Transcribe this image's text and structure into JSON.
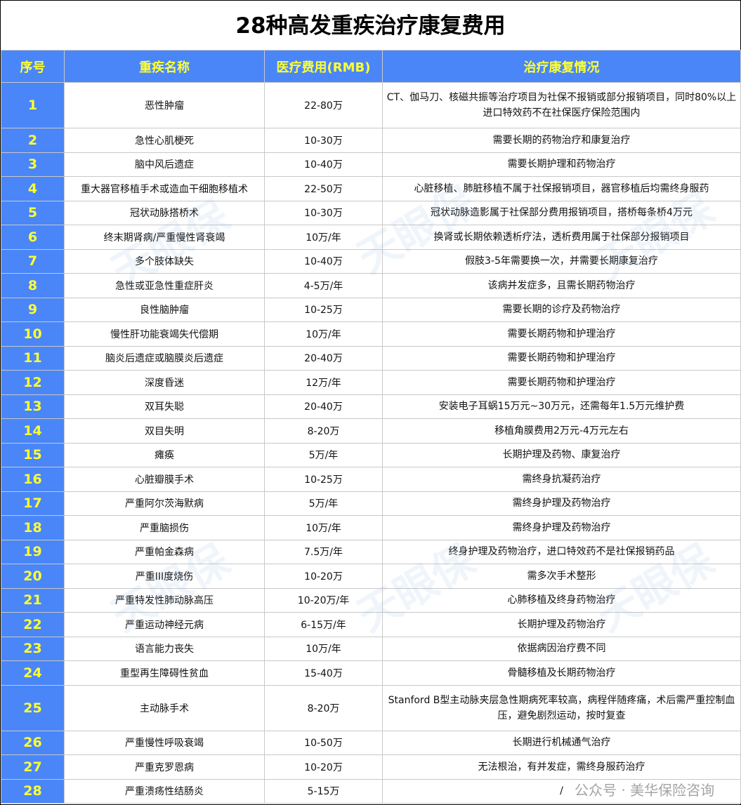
{
  "title": "28种高发重疾治疗康复费用",
  "headers": [
    "序号",
    "重疾名称",
    "医疗费用(RMB)",
    "治疗康复情况"
  ],
  "rows": [
    [
      "1",
      "恶性肿瘤",
      "22-80万",
      "CT、伽马刀、核磁共振等治疗项目为社保不报销或部分报销项目，同时80%以上进口特效药不在社保医疗保险范围内"
    ],
    [
      "2",
      "急性心肌梗死",
      "10-30万",
      "需要长期的药物治疗和康复治疗"
    ],
    [
      "3",
      "脑中风后遗症",
      "10-40万",
      "需要长期护理和药物治疗"
    ],
    [
      "4",
      "重大器官移植手术或造血干细胞移植术",
      "22-50万",
      "心脏移植、肺脏移植不属于社保报销项目，器官移植后均需终身服药"
    ],
    [
      "5",
      "冠状动脉搭桥术",
      "10-30万",
      "冠状动脉造影属于社保部分费用报销项目，搭桥每条桥4万元"
    ],
    [
      "6",
      "终末期肾病/严重慢性肾衰竭",
      "10万/年",
      "换肾或长期依赖透析疗法，透析费用属于社保部分报销项目"
    ],
    [
      "7",
      "多个肢体缺失",
      "10-40万",
      "假肢3-5年需要换一次，并需要长期康复治疗"
    ],
    [
      "8",
      "急性或亚急性重症肝炎",
      "4-5万/年",
      "该病并发症多，且需长期药物治疗"
    ],
    [
      "9",
      "良性脑肿瘤",
      "10-25万",
      "需要长期的诊疗及药物治疗"
    ],
    [
      "10",
      "慢性肝功能衰竭失代偿期",
      "10万/年",
      "需要长期药物和护理治疗"
    ],
    [
      "11",
      "脑炎后遗症或脑膜炎后遗症",
      "20-40万",
      "需要长期药物和护理治疗"
    ],
    [
      "12",
      "深度昏迷",
      "12万/年",
      "需要长期药物和护理治疗"
    ],
    [
      "13",
      "双耳失聪",
      "20-40万",
      "安装电子耳蜗15万元~30万元，还需每年1.5万元维护费"
    ],
    [
      "14",
      "双目失明",
      "8-20万",
      "移植角膜费用2万元-4万元左右"
    ],
    [
      "15",
      "瘫痪",
      "5万/年",
      "长期护理及药物、康复治疗"
    ],
    [
      "16",
      "心脏瓣膜手术",
      "10-25万",
      "需终身抗凝药治疗"
    ],
    [
      "17",
      "严重阿尔茨海默病",
      "5万/年",
      "需终身护理及药物治疗"
    ],
    [
      "18",
      "严重脑损伤",
      "10万/年",
      "需终身护理及药物治疗"
    ],
    [
      "19",
      "严重帕金森病",
      "7.5万/年",
      "终身护理及药物治疗，进口特效药不是社保报销药品"
    ],
    [
      "20",
      "严重III度烧伤",
      "10-20万",
      "需多次手术整形"
    ],
    [
      "21",
      "严重特发性肺动脉高压",
      "10-20万/年",
      "心肺移植及终身药物治疗"
    ],
    [
      "22",
      "严重运动神经元病",
      "6-15万/年",
      "长期护理及药物治疗"
    ],
    [
      "23",
      "语言能力丧失",
      "10万/年",
      "依据病因治疗费不同"
    ],
    [
      "24",
      "重型再生障碍性贫血",
      "15-40万",
      "骨髓移植及长期药物治疗"
    ],
    [
      "25",
      "主动脉手术",
      "8-20万",
      "Stanford B型主动脉夹层急性期病死率较高，病程伴随疼痛，术后需严重控制血压，避免剧烈运动，按时复查"
    ],
    [
      "26",
      "严重慢性呼吸衰竭",
      "10-50万",
      "长期进行机械通气治疗"
    ],
    [
      "27",
      "严重克罗恩病",
      "10-20万",
      "无法根治，有并发症，需终身服药治疗"
    ],
    [
      "28",
      "严重溃疡性结肠炎",
      "5-15万",
      "/"
    ]
  ],
  "watermark": "天眼保",
  "footer_watermark": "公众号 · 美华保险咨询",
  "colors": {
    "header_bg": "#4a86f8",
    "header_text": "#ffff33"
  }
}
